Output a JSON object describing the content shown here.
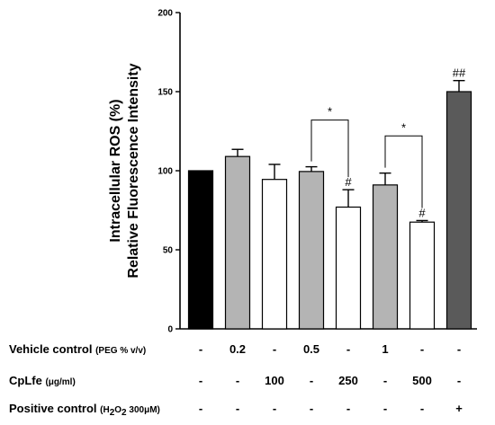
{
  "chart_data": {
    "type": "bar",
    "ylabel_lines": [
      "Intracellular ROS (%)",
      "Relative Fluorescence Intensity"
    ],
    "ylim": [
      0,
      200
    ],
    "yticks": [
      0,
      50,
      100,
      150,
      200
    ],
    "grid": false,
    "bars": [
      {
        "value": 100,
        "error": 0,
        "color": "#000000",
        "annotation": ""
      },
      {
        "value": 109,
        "error": 4.5,
        "color": "#b4b4b4",
        "annotation": ""
      },
      {
        "value": 94.5,
        "error": 9.5,
        "color": "#ffffff",
        "annotation": ""
      },
      {
        "value": 99.5,
        "error": 3,
        "color": "#b4b4b4",
        "annotation": ""
      },
      {
        "value": 77,
        "error": 11,
        "color": "#ffffff",
        "annotation": "#"
      },
      {
        "value": 91,
        "error": 7.5,
        "color": "#b4b4b4",
        "annotation": ""
      },
      {
        "value": 67.5,
        "error": 1,
        "color": "#ffffff",
        "annotation": "#"
      },
      {
        "value": 150,
        "error": 7,
        "color": "#5a5a5a",
        "annotation": "##"
      }
    ],
    "significance": [
      {
        "from": 3,
        "to": 4,
        "level": 132,
        "label": "*"
      },
      {
        "from": 5,
        "to": 6,
        "level": 122,
        "label": "*"
      }
    ],
    "condition_rows": [
      {
        "label": "Vehicle control",
        "label_suffix": "(PEG % v/v)",
        "cells": [
          "-",
          "0.2",
          "-",
          "0.5",
          "-",
          "1",
          "-",
          "-"
        ]
      },
      {
        "label": "CpLfe",
        "label_suffix": "(μg/ml)",
        "cells": [
          "-",
          "-",
          "100",
          "-",
          "250",
          "-",
          "500",
          "-"
        ]
      },
      {
        "label": "Positive control",
        "label_suffix_parts": [
          "(H",
          "2",
          "O",
          "2",
          " 300μM)"
        ],
        "cells": [
          "-",
          "-",
          "-",
          "-",
          "-",
          "-",
          "-",
          "+"
        ]
      }
    ]
  }
}
